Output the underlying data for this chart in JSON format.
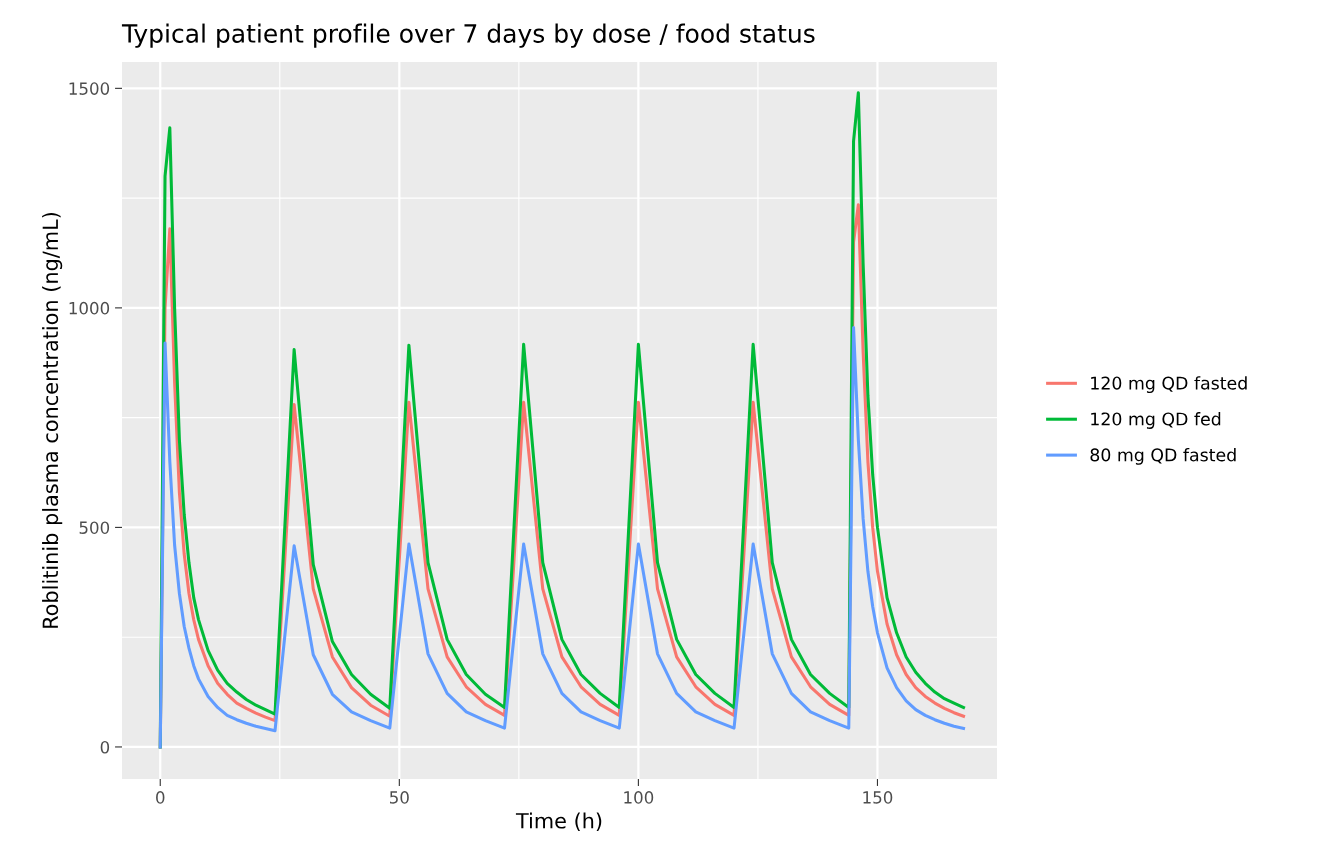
{
  "chart_data": {
    "type": "line",
    "title": "Typical patient profile over 7 days by dose / food status",
    "xlabel": "Time (h)",
    "ylabel": "Roblitinib plasma concentration (ng/mL)",
    "xlim": [
      -8,
      175
    ],
    "ylim": [
      -73,
      1560
    ],
    "xticks": [
      0,
      50,
      100,
      150
    ],
    "yticks": [
      0,
      500,
      1000,
      1500
    ],
    "grid": true,
    "legend": "right",
    "line_style": "solid",
    "marker": "none",
    "series": [
      {
        "name": "120 mg QD fasted",
        "color": "#f8766d",
        "x": [
          0,
          1,
          2,
          3,
          4,
          5,
          6,
          7,
          8,
          10,
          12,
          14,
          16,
          18,
          20,
          22,
          24,
          28,
          32,
          36,
          40,
          44,
          48,
          52,
          56,
          60,
          64,
          68,
          72,
          76,
          80,
          84,
          88,
          92,
          96,
          100,
          104,
          108,
          112,
          116,
          120,
          124,
          128,
          132,
          136,
          140,
          144,
          145,
          146,
          147,
          148,
          149,
          150,
          152,
          154,
          156,
          158,
          160,
          162,
          164,
          166,
          168
        ],
        "values": [
          0,
          1000,
          1180,
          830,
          580,
          440,
          350,
          290,
          245,
          185,
          145,
          120,
          100,
          88,
          77,
          68,
          60,
          780,
          360,
          205,
          135,
          95,
          70,
          785,
          360,
          205,
          137,
          97,
          72,
          785,
          360,
          205,
          137,
          97,
          72,
          785,
          360,
          205,
          137,
          97,
          72,
          785,
          360,
          205,
          137,
          97,
          72,
          1150,
          1235,
          900,
          650,
          500,
          400,
          280,
          210,
          165,
          135,
          115,
          100,
          88,
          78,
          70
        ]
      },
      {
        "name": "120 mg QD fed",
        "color": "#00ba38",
        "x": [
          0,
          1,
          2,
          3,
          4,
          5,
          6,
          7,
          8,
          10,
          12,
          14,
          16,
          18,
          20,
          22,
          24,
          28,
          32,
          36,
          40,
          44,
          48,
          52,
          56,
          60,
          64,
          68,
          72,
          76,
          80,
          84,
          88,
          92,
          96,
          100,
          104,
          108,
          112,
          116,
          120,
          124,
          128,
          132,
          136,
          140,
          144,
          145,
          146,
          147,
          148,
          149,
          150,
          152,
          154,
          156,
          158,
          160,
          162,
          164,
          166,
          168
        ],
        "values": [
          0,
          1300,
          1410,
          1000,
          700,
          530,
          420,
          340,
          290,
          220,
          175,
          145,
          125,
          108,
          95,
          85,
          75,
          905,
          415,
          240,
          165,
          120,
          88,
          915,
          420,
          245,
          165,
          120,
          90,
          917,
          420,
          245,
          165,
          122,
          90,
          917,
          420,
          245,
          165,
          122,
          90,
          917,
          420,
          245,
          165,
          122,
          90,
          1380,
          1490,
          1100,
          800,
          620,
          500,
          340,
          260,
          205,
          170,
          145,
          125,
          110,
          100,
          90
        ]
      },
      {
        "name": "80 mg QD fasted",
        "color": "#619cff",
        "x": [
          0,
          1,
          2,
          3,
          4,
          5,
          6,
          7,
          8,
          10,
          12,
          14,
          16,
          18,
          20,
          22,
          24,
          28,
          32,
          36,
          40,
          44,
          48,
          52,
          56,
          60,
          64,
          68,
          72,
          76,
          80,
          84,
          88,
          92,
          96,
          100,
          104,
          108,
          112,
          116,
          120,
          124,
          128,
          132,
          136,
          140,
          144,
          145,
          146,
          147,
          148,
          149,
          150,
          152,
          154,
          156,
          158,
          160,
          162,
          164,
          166,
          168
        ],
        "values": [
          0,
          920,
          650,
          460,
          350,
          275,
          225,
          185,
          155,
          115,
          90,
          72,
          62,
          54,
          47,
          42,
          37,
          458,
          210,
          120,
          80,
          60,
          43,
          462,
          212,
          122,
          80,
          60,
          43,
          462,
          212,
          122,
          80,
          60,
          43,
          462,
          212,
          122,
          80,
          60,
          43,
          462,
          212,
          122,
          80,
          60,
          43,
          955,
          700,
          520,
          400,
          320,
          260,
          180,
          135,
          105,
          85,
          72,
          62,
          54,
          47,
          42
        ]
      }
    ]
  }
}
